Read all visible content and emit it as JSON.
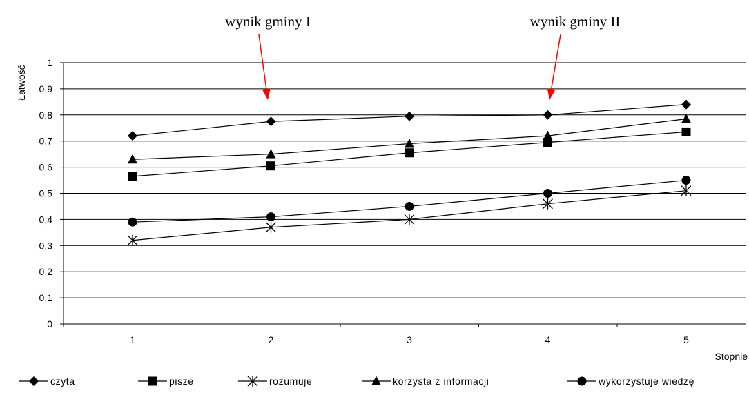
{
  "chart_data": {
    "type": "line",
    "title": "",
    "xlabel": "Stopnie",
    "ylabel": "Łatwość",
    "x": [
      1,
      2,
      3,
      4,
      5
    ],
    "x_tick_labels": [
      "1",
      "2",
      "3",
      "4",
      "5"
    ],
    "ylim": [
      0,
      1
    ],
    "y_tick_labels": [
      "0",
      "0,1",
      "0,2",
      "0,3",
      "0,4",
      "0,5",
      "0,6",
      "0,7",
      "0,8",
      "0,9",
      "1"
    ],
    "grid": true,
    "legend_position": "bottom",
    "series": [
      {
        "name": "czyta",
        "marker": "diamond",
        "values": [
          0.72,
          0.775,
          0.795,
          0.8,
          0.84
        ]
      },
      {
        "name": "pisze",
        "marker": "square",
        "values": [
          0.565,
          0.605,
          0.655,
          0.695,
          0.735
        ]
      },
      {
        "name": "rozumuje",
        "marker": "asterisk",
        "values": [
          0.32,
          0.37,
          0.4,
          0.46,
          0.51
        ]
      },
      {
        "name": "korzysta z informacji",
        "marker": "triangle",
        "values": [
          0.63,
          0.65,
          0.69,
          0.72,
          0.785
        ]
      },
      {
        "name": "wykorzystuje wiedzę",
        "marker": "circle",
        "values": [
          0.39,
          0.41,
          0.45,
          0.5,
          0.55
        ]
      }
    ],
    "annotations": [
      {
        "text": "wynik gminy I",
        "points_to_x": 2,
        "arrow_color": "#ff0000"
      },
      {
        "text": "wynik gminy II",
        "points_to_x": 4,
        "arrow_color": "#ff0000"
      }
    ]
  }
}
